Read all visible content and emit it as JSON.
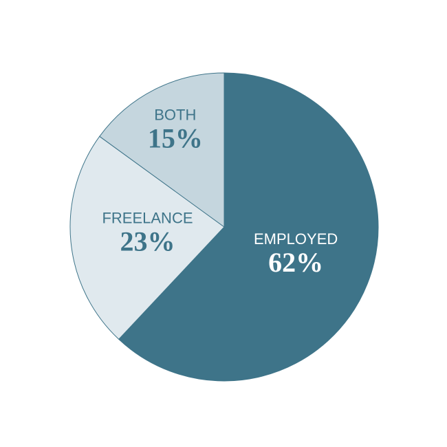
{
  "chart_data": {
    "type": "pie",
    "categories": [
      "EMPLOYED",
      "FREELANCE",
      "BOTH"
    ],
    "values": [
      62,
      23,
      15
    ],
    "value_labels": [
      "62%",
      "23%",
      "15%"
    ],
    "colors": [
      "#3e7489",
      "#e0e9ee",
      "#c5d6de"
    ],
    "label_colors": [
      "#ffffff",
      "#3e7489",
      "#3e7489"
    ]
  }
}
